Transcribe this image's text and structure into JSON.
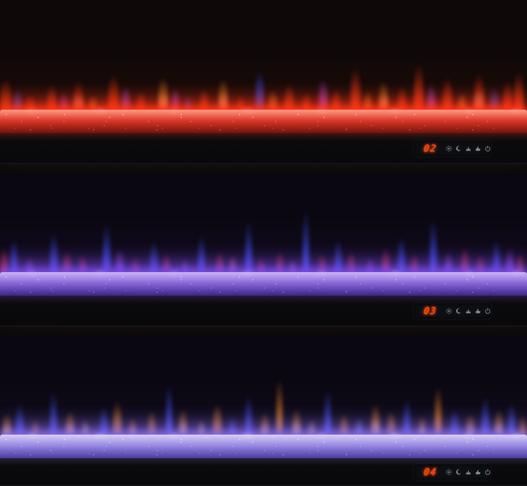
{
  "photo": {
    "subject": "Wall-mounted linear electric fireplace shown in three flame color modes"
  },
  "control": {
    "led_color": "#ff4008",
    "icon_color": "#99a1ac",
    "icons": [
      "brightness",
      "timer",
      "flame-effect",
      "comfort-touch",
      "power"
    ]
  },
  "units": [
    {
      "display_value": "02",
      "mode": "red-orange flames, red crystal bed",
      "colors": {
        "bg1": "#0e0808",
        "bg2": "#180b08",
        "bg3": "#371109",
        "bedhi": "#ff9c86",
        "bed": "#d93425",
        "beddark": "#6e130c",
        "glow": "#ff3318",
        "f1": "#ff3c12",
        "f2": "#ff9226",
        "f3": "#c44cf2",
        "f4": "#4254ff"
      }
    },
    {
      "display_value": "03",
      "mode": "blue-purple-red flames, purple crystal bed",
      "colors": {
        "bg1": "#0a0710",
        "bg2": "#110b1d",
        "bg3": "#231542",
        "bedhi": "#cdb4f6",
        "bed": "#8565d6",
        "beddark": "#3c2484",
        "glow": "#7a4ce8",
        "f1": "#f03256",
        "f2": "#3e52ff",
        "f3": "#a844f0",
        "f4": "#ff6e9e"
      }
    },
    {
      "display_value": "04",
      "mode": "orange-blue flames, lavender crystal bed",
      "colors": {
        "bg1": "#0a0710",
        "bg2": "#100b1b",
        "bg3": "#21143e",
        "bedhi": "#d8d0f8",
        "bed": "#9486e0",
        "beddark": "#4a3a9e",
        "glow": "#8468e6",
        "f1": "#ff9226",
        "f2": "#4254ff",
        "f3": "#ffc368",
        "f4": "#7a86ff"
      }
    }
  ]
}
